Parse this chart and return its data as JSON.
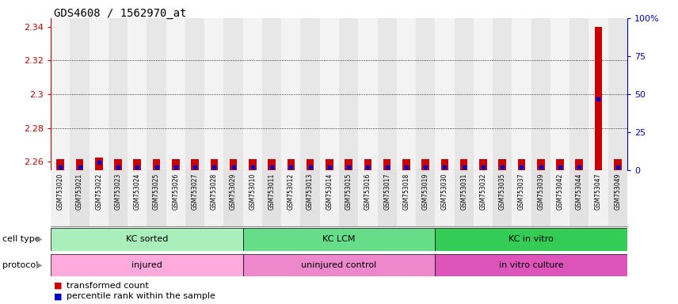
{
  "title": "GDS4608 / 1562970_at",
  "samples": [
    "GSM753020",
    "GSM753021",
    "GSM753022",
    "GSM753023",
    "GSM753024",
    "GSM753025",
    "GSM753026",
    "GSM753027",
    "GSM753028",
    "GSM753029",
    "GSM753010",
    "GSM753011",
    "GSM753012",
    "GSM753013",
    "GSM753014",
    "GSM753015",
    "GSM753016",
    "GSM753017",
    "GSM753018",
    "GSM753019",
    "GSM753030",
    "GSM753031",
    "GSM753032",
    "GSM753035",
    "GSM753037",
    "GSM753039",
    "GSM753042",
    "GSM753044",
    "GSM753047",
    "GSM753049"
  ],
  "transformed_counts": [
    2.2615,
    2.2615,
    2.2625,
    2.2615,
    2.2615,
    2.2615,
    2.2615,
    2.2615,
    2.2615,
    2.2615,
    2.2615,
    2.2615,
    2.2615,
    2.2615,
    2.2615,
    2.2615,
    2.2615,
    2.2615,
    2.2615,
    2.2615,
    2.2615,
    2.2615,
    2.2615,
    2.2615,
    2.2615,
    2.2615,
    2.2615,
    2.2615,
    2.34,
    2.2615
  ],
  "percentile_ranks": [
    2,
    2,
    5,
    2,
    2,
    2,
    2,
    2,
    2,
    2,
    2,
    2,
    2,
    2,
    2,
    2,
    2,
    2,
    2,
    2,
    2,
    2,
    2,
    2,
    2,
    2,
    2,
    2,
    47,
    2
  ],
  "ylim_left": [
    2.255,
    2.345
  ],
  "ylim_right": [
    0,
    100
  ],
  "yticks_left": [
    2.26,
    2.28,
    2.3,
    2.32,
    2.34
  ],
  "yticks_right": [
    0,
    25,
    50,
    75,
    100
  ],
  "ylabel_left_color": "#cc0000",
  "ylabel_right_color": "#0000cc",
  "bar_color": "#cc0000",
  "dot_color": "#0000cc",
  "grid_color": "#000000",
  "column_bg_even": "#e8e8e8",
  "column_bg_odd": "#d0d0d0",
  "cell_type_groups": [
    {
      "label": "KC sorted",
      "start": 0,
      "end": 9,
      "color": "#aaeebb"
    },
    {
      "label": "KC LCM",
      "start": 10,
      "end": 19,
      "color": "#66dd88"
    },
    {
      "label": "KC in vitro",
      "start": 20,
      "end": 29,
      "color": "#33cc55"
    }
  ],
  "protocol_groups": [
    {
      "label": "injured",
      "start": 0,
      "end": 9,
      "color": "#ffaadd"
    },
    {
      "label": "uninjured control",
      "start": 10,
      "end": 19,
      "color": "#ee88cc"
    },
    {
      "label": "in vitro culture",
      "start": 20,
      "end": 29,
      "color": "#dd55bb"
    }
  ],
  "legend_items": [
    {
      "label": "transformed count",
      "color": "#cc0000"
    },
    {
      "label": "percentile rank within the sample",
      "color": "#0000cc"
    }
  ],
  "cell_type_label": "cell type",
  "protocol_label": "protocol",
  "background_color": "#ffffff"
}
